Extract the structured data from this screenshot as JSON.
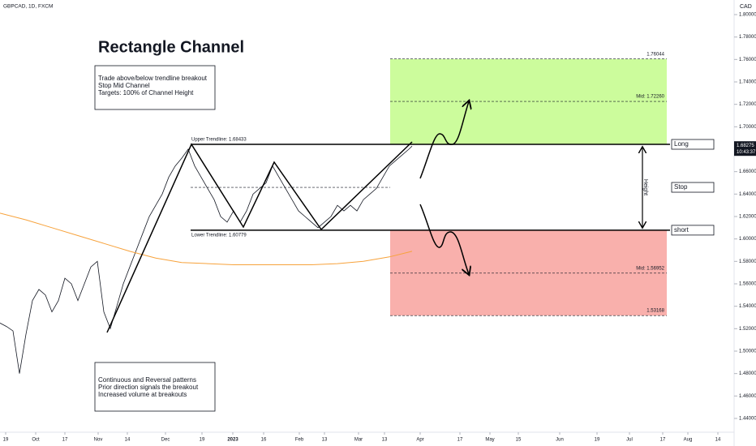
{
  "chart_data": {
    "type": "line",
    "title": "GBPCAD, 1D, FXCM",
    "currency": "CAD",
    "ylim": [
      1.42626,
      1.81301
    ],
    "yticks": [
      {
        "value": 1.44,
        "label": "1.44000"
      },
      {
        "value": 1.46,
        "label": "1.46000"
      },
      {
        "value": 1.48,
        "label": "1.48000"
      },
      {
        "value": 1.5,
        "label": "1.50000"
      },
      {
        "value": 1.52,
        "label": "1.52000"
      },
      {
        "value": 1.54,
        "label": "1.54000"
      },
      {
        "value": 1.56,
        "label": "1.56000"
      },
      {
        "value": 1.58,
        "label": "1.58000"
      },
      {
        "value": 1.6,
        "label": "1.60000"
      },
      {
        "value": 1.62,
        "label": "1.62000"
      },
      {
        "value": 1.64,
        "label": "1.64000"
      },
      {
        "value": 1.66,
        "label": "1.66000"
      },
      {
        "value": 1.68,
        "label": "1.68000"
      },
      {
        "value": 1.7,
        "label": "1.70000"
      },
      {
        "value": 1.72,
        "label": "1.72000"
      },
      {
        "value": 1.74,
        "label": "1.74000"
      },
      {
        "value": 1.76,
        "label": "1.76000"
      },
      {
        "value": 1.78,
        "label": "1.78000"
      },
      {
        "value": 1.8,
        "label": "1.80000"
      }
    ],
    "xlim": [
      0,
      226.25
    ],
    "xticks": [
      {
        "value": 1.75,
        "label": "19"
      },
      {
        "value": 11,
        "label": "Oct"
      },
      {
        "value": 20,
        "label": "17"
      },
      {
        "value": 30.25,
        "label": "Nov"
      },
      {
        "value": 39.25,
        "label": "14"
      },
      {
        "value": 51,
        "label": "Dec"
      },
      {
        "value": 62.25,
        "label": "19"
      },
      {
        "value": 71.75,
        "label": "2023"
      },
      {
        "value": 81.25,
        "label": "16"
      },
      {
        "value": 92.25,
        "label": "Feb"
      },
      {
        "value": 100,
        "label": "13"
      },
      {
        "value": 110.5,
        "label": "Mar"
      },
      {
        "value": 118.5,
        "label": "13"
      },
      {
        "value": 129.5,
        "label": "Apr"
      },
      {
        "value": 141.75,
        "label": "17"
      },
      {
        "value": 151,
        "label": "May"
      },
      {
        "value": 159.75,
        "label": "15"
      },
      {
        "value": 172.5,
        "label": "Jun"
      },
      {
        "value": 184,
        "label": "19"
      },
      {
        "value": 194,
        "label": "Jul"
      },
      {
        "value": 204.25,
        "label": "17"
      },
      {
        "value": 212,
        "label": "Aug"
      },
      {
        "value": 221.25,
        "label": "14"
      }
    ],
    "series": [
      {
        "color": "#131722",
        "x": [
          0,
          2,
          4,
          6,
          8,
          10,
          12,
          14,
          16,
          18,
          20,
          22,
          24,
          26,
          28,
          30,
          32,
          34,
          36,
          38,
          40,
          42,
          44,
          46,
          48,
          50,
          52,
          54,
          56,
          58,
          60,
          62,
          64,
          66,
          68,
          70,
          72,
          74,
          76,
          78,
          80,
          82,
          84,
          86,
          88,
          90,
          92,
          94,
          96,
          98,
          100,
          102,
          104,
          106,
          108,
          110,
          112,
          114,
          116,
          118,
          120,
          122,
          124,
          126,
          127
        ],
        "values": [
          1.525,
          1.522,
          1.518,
          1.48,
          1.515,
          1.545,
          1.555,
          1.55,
          1.535,
          1.545,
          1.565,
          1.56,
          1.545,
          1.56,
          1.575,
          1.58,
          1.535,
          1.52,
          1.54,
          1.56,
          1.575,
          1.59,
          1.605,
          1.62,
          1.63,
          1.64,
          1.655,
          1.665,
          1.672,
          1.68,
          1.665,
          1.655,
          1.645,
          1.635,
          1.62,
          1.615,
          1.625,
          1.615,
          1.625,
          1.64,
          1.645,
          1.65,
          1.665,
          1.655,
          1.645,
          1.635,
          1.625,
          1.62,
          1.615,
          1.61,
          1.615,
          1.62,
          1.63,
          1.625,
          1.63,
          1.625,
          1.635,
          1.64,
          1.645,
          1.655,
          1.665,
          1.67,
          1.675,
          1.68,
          1.68275
        ]
      },
      {
        "color": "#f7a23b",
        "x": [
          0,
          8,
          16,
          24,
          32,
          40,
          48,
          56,
          64,
          72,
          80,
          88,
          96,
          104,
          112,
          120,
          127
        ],
        "values": [
          1.623,
          1.617,
          1.61,
          1.603,
          1.596,
          1.589,
          1.583,
          1.579,
          1.578,
          1.577,
          1.577,
          1.577,
          1.577,
          1.578,
          1.58,
          1.584,
          1.589
        ]
      }
    ],
    "pattern": {
      "x": [
        33,
        59,
        75,
        84.5,
        99,
        127
      ],
      "values": [
        1.5166,
        1.68433,
        1.6106,
        1.6684,
        1.6084,
        1.6865
      ]
    },
    "heading": "Rectangle Channel",
    "notes_top": [
      "Trade above/below trendline breakout",
      "Stop Mid Channel",
      "Targets: 100% of Channel Height"
    ],
    "notes_bottom": [
      "Continuous and Reversal patterns",
      "Prior direction signals the breakout",
      "Increased volume at breakouts"
    ],
    "upper_trendline": {
      "value": 1.68433,
      "label": "Upper Trendline: 1.68433"
    },
    "lower_trendline": {
      "value": 1.60779,
      "label": "Lower Trendline: 1.60779"
    },
    "stop": 1.646,
    "target_long": {
      "value": 1.76044,
      "label": "1.76044"
    },
    "mid_long": {
      "value": 1.7226,
      "label": "Mid: 1.72260"
    },
    "mid_short": {
      "value": 1.56952,
      "label": "Mid: 1.56952"
    },
    "target_short": {
      "value": 1.53168,
      "label": "1.53168"
    },
    "buttons": [
      "Long",
      "Stop",
      "short"
    ],
    "height_label": "Height",
    "last_price": {
      "value": 1.68275,
      "label": "1.68275"
    },
    "countdown": "10:43:37"
  }
}
